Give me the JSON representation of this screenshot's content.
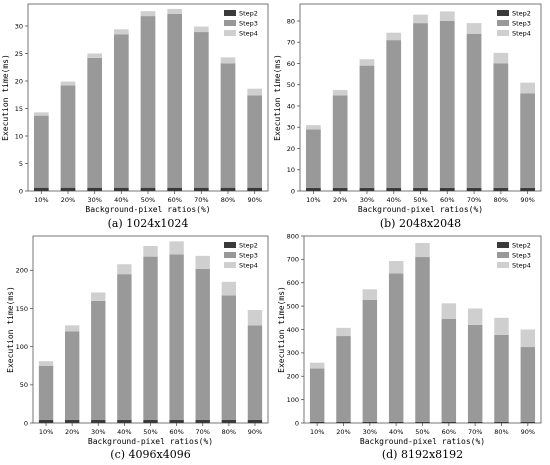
{
  "colors": {
    "Step2": "#3a3a3a",
    "Step3": "#999999",
    "Step4": "#cfcfcf"
  },
  "chart_data": [
    {
      "type": "bar",
      "stacked": true,
      "caption": "(a) 1024x1024",
      "xlabel": "Background-pixel ratios(%)",
      "ylabel": "Execution time(ms)",
      "categories": [
        "10%",
        "20%",
        "30%",
        "40%",
        "50%",
        "60%",
        "70%",
        "80%",
        "90%"
      ],
      "ylim": [
        0,
        34
      ],
      "yticks": [
        0,
        5,
        10,
        15,
        20,
        25,
        30
      ],
      "legend": "top-right",
      "series": [
        {
          "name": "Step2",
          "values": [
            0.6,
            0.6,
            0.6,
            0.6,
            0.6,
            0.6,
            0.6,
            0.6,
            0.6
          ]
        },
        {
          "name": "Step3",
          "values": [
            13.1,
            18.6,
            23.6,
            27.9,
            31.2,
            31.6,
            28.3,
            22.6,
            16.8
          ]
        },
        {
          "name": "Step4",
          "values": [
            0.6,
            0.7,
            0.8,
            0.9,
            0.9,
            0.9,
            1.0,
            1.1,
            1.2
          ]
        }
      ]
    },
    {
      "type": "bar",
      "stacked": true,
      "caption": "(b) 2048x2048",
      "xlabel": "Background-pixel ratios(%)",
      "ylabel": "Execution time(ms)",
      "categories": [
        "10%",
        "20%",
        "30%",
        "40%",
        "50%",
        "60%",
        "70%",
        "80%",
        "90%"
      ],
      "ylim": [
        0,
        88
      ],
      "yticks": [
        0,
        10,
        20,
        30,
        40,
        50,
        60,
        70,
        80
      ],
      "legend": "top-right",
      "series": [
        {
          "name": "Step2",
          "values": [
            1.5,
            1.5,
            1.5,
            1.5,
            1.5,
            1.5,
            1.5,
            1.5,
            1.5
          ]
        },
        {
          "name": "Step3",
          "values": [
            27.5,
            43.5,
            57.5,
            69.5,
            77.5,
            78.5,
            72.5,
            58.5,
            44.5
          ]
        },
        {
          "name": "Step4",
          "values": [
            2,
            2.5,
            3,
            3.5,
            4,
            4.5,
            5,
            5,
            5
          ]
        }
      ]
    },
    {
      "type": "bar",
      "stacked": true,
      "caption": "(c) 4096x4096",
      "xlabel": "Background-pixel ratios(%)",
      "ylabel": "Execution time(ms)",
      "categories": [
        "10%",
        "20%",
        "30%",
        "40%",
        "50%",
        "60%",
        "70%",
        "80%",
        "90%"
      ],
      "ylim": [
        0,
        245
      ],
      "yticks": [
        0,
        50,
        100,
        150,
        200
      ],
      "legend": "top-right",
      "series": [
        {
          "name": "Step2",
          "values": [
            4,
            4,
            4,
            4,
            4,
            4,
            4,
            4,
            4
          ]
        },
        {
          "name": "Step3",
          "values": [
            71,
            116,
            156,
            191,
            214,
            217,
            198,
            163,
            124
          ]
        },
        {
          "name": "Step4",
          "values": [
            6,
            8,
            11,
            13,
            14,
            17,
            17,
            18,
            20
          ]
        }
      ]
    },
    {
      "type": "bar",
      "stacked": true,
      "caption": "(d) 8192x8192",
      "xlabel": "Background-pixel ratios(%)",
      "ylabel": "Execution time(ms)",
      "categories": [
        "10%",
        "20%",
        "30%",
        "40%",
        "50%",
        "60%",
        "70%",
        "80%",
        "90%"
      ],
      "ylim": [
        0,
        800
      ],
      "yticks": [
        0,
        100,
        200,
        300,
        400,
        500,
        600,
        700,
        800
      ],
      "legend": "top-right",
      "series": [
        {
          "name": "Step2",
          "values": [
            5,
            5,
            5,
            5,
            5,
            5,
            5,
            5,
            5
          ]
        },
        {
          "name": "Step3",
          "values": [
            228,
            367,
            522,
            635,
            705,
            440,
            415,
            372,
            320
          ]
        },
        {
          "name": "Step4",
          "values": [
            25,
            35,
            45,
            53,
            60,
            67,
            70,
            73,
            75
          ]
        }
      ]
    }
  ]
}
